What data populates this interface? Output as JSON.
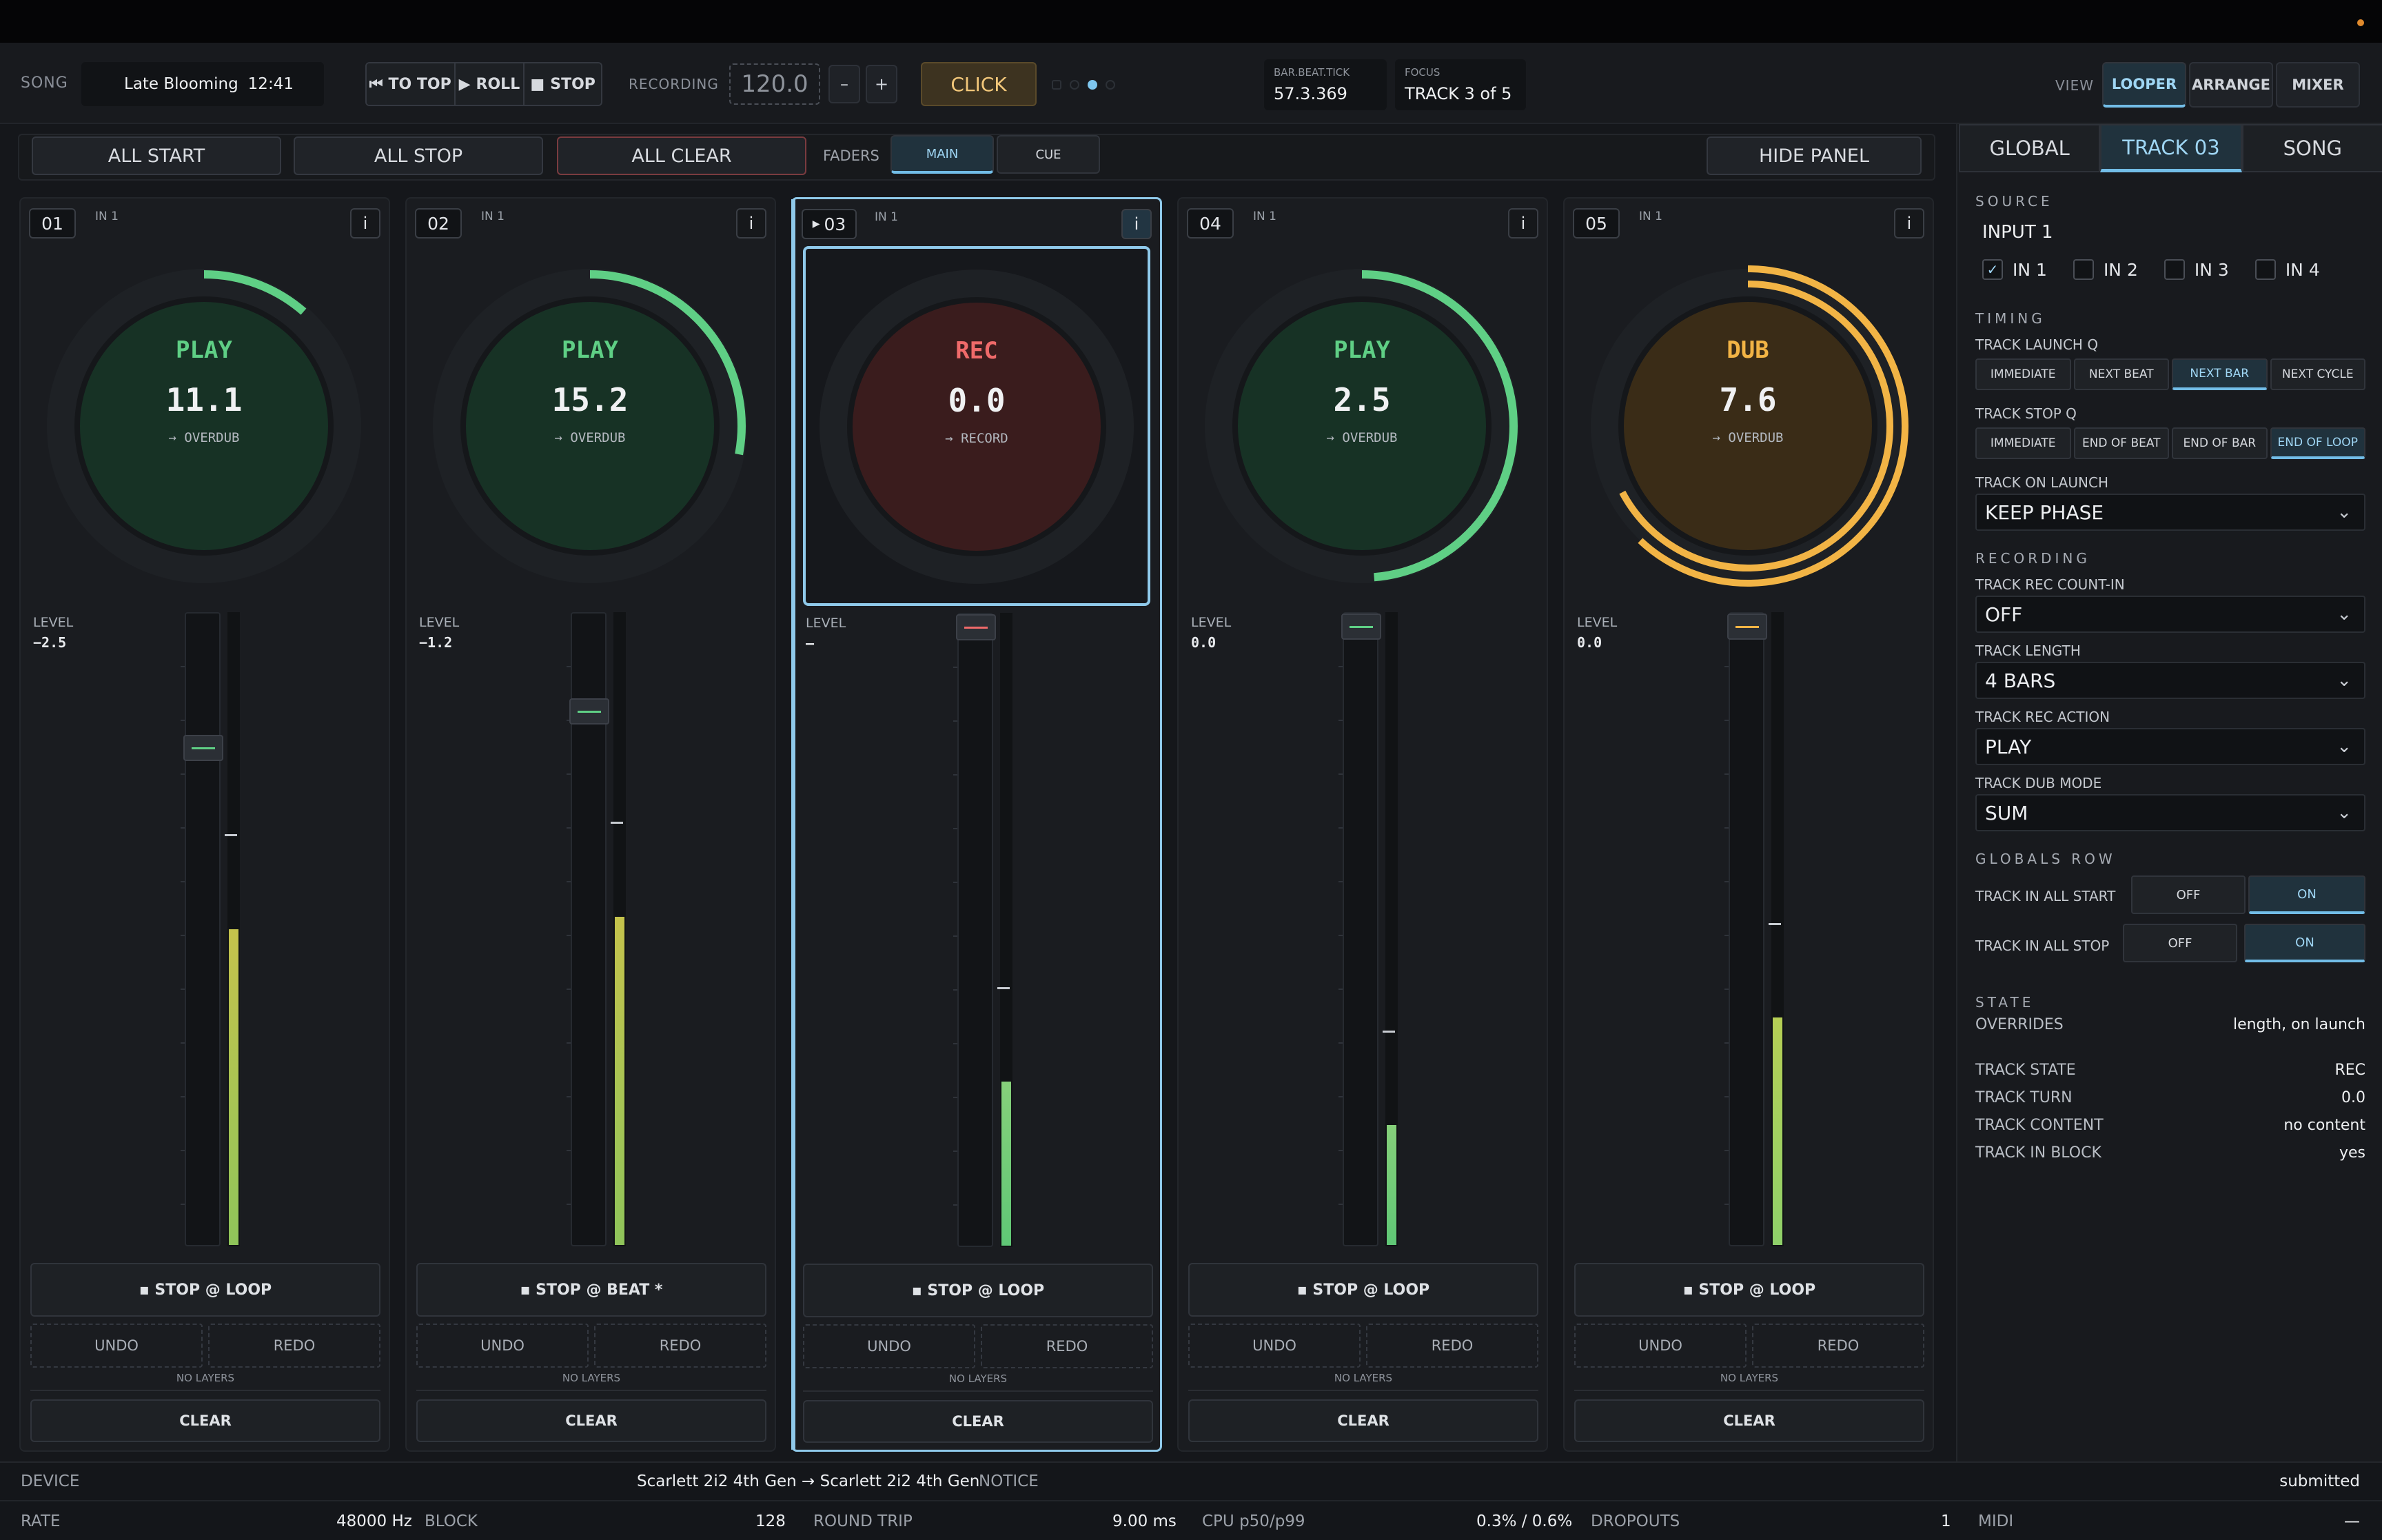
{
  "header": {
    "song_label": "SONG",
    "song_name": "Late Blooming",
    "song_time": "12:41",
    "transport": [
      "TO TOP",
      "ROLL",
      "STOP"
    ],
    "recording_label": "RECORDING",
    "tempo": "120.0",
    "minus": "–",
    "plus": "+",
    "click": "CLICK",
    "bbt_label": "BAR.BEAT.TICK",
    "bbt_value": "57.3.369",
    "focus_label": "FOCUS",
    "focus_value": "TRACK 3 of 5",
    "view_label": "VIEW",
    "views": [
      "LOOPER",
      "ARRANGE",
      "MIXER"
    ]
  },
  "toolbar": {
    "all_start": "ALL START",
    "all_stop": "ALL STOP",
    "all_clear": "ALL CLEAR",
    "faders_label": "FADERS",
    "main": "MAIN",
    "cue": "CUE",
    "hide_panel": "HIDE PANEL"
  },
  "tracks": [
    {
      "num": "01",
      "input": "IN 1",
      "info": "i",
      "state": "PLAY",
      "value": "11.1",
      "next": "→ OVERDUB",
      "level_label": "LEVEL",
      "level": "−2.5",
      "level_fraction": 0.8,
      "meter_fraction": 0.5,
      "progress": 0.11,
      "stop_label": "▪ STOP @ LOOP",
      "undo": "UNDO",
      "redo": "REDO",
      "layers": "NO LAYERS",
      "clear": "CLEAR"
    },
    {
      "num": "02",
      "input": "IN 1",
      "info": "i",
      "state": "PLAY",
      "value": "15.2",
      "next": "→ OVERDUB",
      "level_label": "LEVEL",
      "level": "−1.2",
      "level_fraction": 0.86,
      "meter_fraction": 0.52,
      "progress": 0.27,
      "stop_label": "▪ STOP @ BEAT *",
      "undo": "UNDO",
      "redo": "REDO",
      "layers": "NO LAYERS",
      "clear": "CLEAR"
    },
    {
      "num": "03",
      "input": "IN 1",
      "info": "i",
      "state": "REC",
      "value": "0.0",
      "next": "→ RECORD",
      "level_label": "LEVEL",
      "level": "—",
      "level_fraction": 1.0,
      "meter_fraction": 0.26,
      "progress": 0.0,
      "stop_label": "▪ STOP @ LOOP",
      "undo": "UNDO",
      "redo": "REDO",
      "layers": "NO LAYERS",
      "clear": "CLEAR"
    },
    {
      "num": "04",
      "input": "IN 1",
      "info": "i",
      "state": "PLAY",
      "value": "2.5",
      "next": "→ OVERDUB",
      "level_label": "LEVEL",
      "level": "0.0",
      "level_fraction": 1.0,
      "meter_fraction": 0.19,
      "progress": 0.47,
      "stop_label": "▪ STOP @ LOOP",
      "undo": "UNDO",
      "redo": "REDO",
      "layers": "NO LAYERS",
      "clear": "CLEAR"
    },
    {
      "num": "05",
      "input": "IN 1",
      "info": "i",
      "state": "DUB",
      "value": "7.6",
      "next": "→ OVERDUB",
      "level_label": "LEVEL",
      "level": "0.0",
      "level_fraction": 1.0,
      "meter_fraction": 0.36,
      "progress": 0.62,
      "stop_label": "▪ STOP @ LOOP",
      "undo": "UNDO",
      "redo": "REDO",
      "layers": "NO LAYERS",
      "clear": "CLEAR"
    }
  ],
  "panel": {
    "tabs": [
      "GLOBAL",
      "TRACK 03",
      "SONG"
    ],
    "source_title": "SOURCE",
    "source_value": "INPUT 1",
    "inputs": [
      "IN 1",
      "IN 2",
      "IN 3",
      "IN 4"
    ],
    "timing_title": "TIMING",
    "launch_q_label": "TRACK LAUNCH Q",
    "launch_q": [
      "IMMEDIATE",
      "NEXT BEAT",
      "NEXT BAR",
      "NEXT CYCLE"
    ],
    "stop_q_label": "TRACK STOP Q",
    "stop_q": [
      "IMMEDIATE",
      "END OF BEAT",
      "END OF BAR",
      "END OF LOOP"
    ],
    "on_launch_label": "TRACK ON LAUNCH",
    "on_launch": "KEEP PHASE",
    "recording_title": "RECORDING",
    "count_in_label": "TRACK REC COUNT-IN",
    "count_in": "OFF",
    "length_label": "TRACK LENGTH",
    "length": "4 BARS",
    "rec_action_label": "TRACK REC ACTION",
    "rec_action": "PLAY",
    "dub_mode_label": "TRACK DUB MODE",
    "dub_mode": "SUM",
    "globals_title": "GLOBALS ROW",
    "all_start_label": "TRACK IN ALL START",
    "all_stop_label": "TRACK IN ALL STOP",
    "off": "OFF",
    "on": "ON",
    "state_title": "STATE",
    "overrides_label": "OVERRIDES",
    "overrides": "length, on launch",
    "track_state_label": "TRACK STATE",
    "track_state": "REC",
    "track_turn_label": "TRACK TURN",
    "track_turn": "0.0",
    "track_content_label": "TRACK CONTENT",
    "track_content": "no content",
    "track_in_block_label": "TRACK IN BLOCK",
    "track_in_block": "yes"
  },
  "footer": {
    "device_label": "DEVICE",
    "device_value": "Scarlett 2i2 4th Gen → Scarlett 2i2 4th Gen",
    "notice_label": "NOTICE",
    "notice_value": "submitted",
    "rate_label": "RATE",
    "rate_value": "48000 Hz",
    "block_label": "BLOCK",
    "block_value": "128",
    "rt_label": "ROUND TRIP",
    "rt_value": "9.00 ms",
    "cpu_label": "CPU p50/p99",
    "cpu_value": "0.3% / 0.6%",
    "dropouts_label": "DROPOUTS",
    "dropouts_value": "1",
    "midi_label": "MIDI",
    "midi_value": "—"
  },
  "colors": {
    "play": "#5fcf85",
    "rec": "#ef6a6a",
    "dub": "#f2b445",
    "accent": "#8fc9ea",
    "meter": "#c7c24a"
  }
}
